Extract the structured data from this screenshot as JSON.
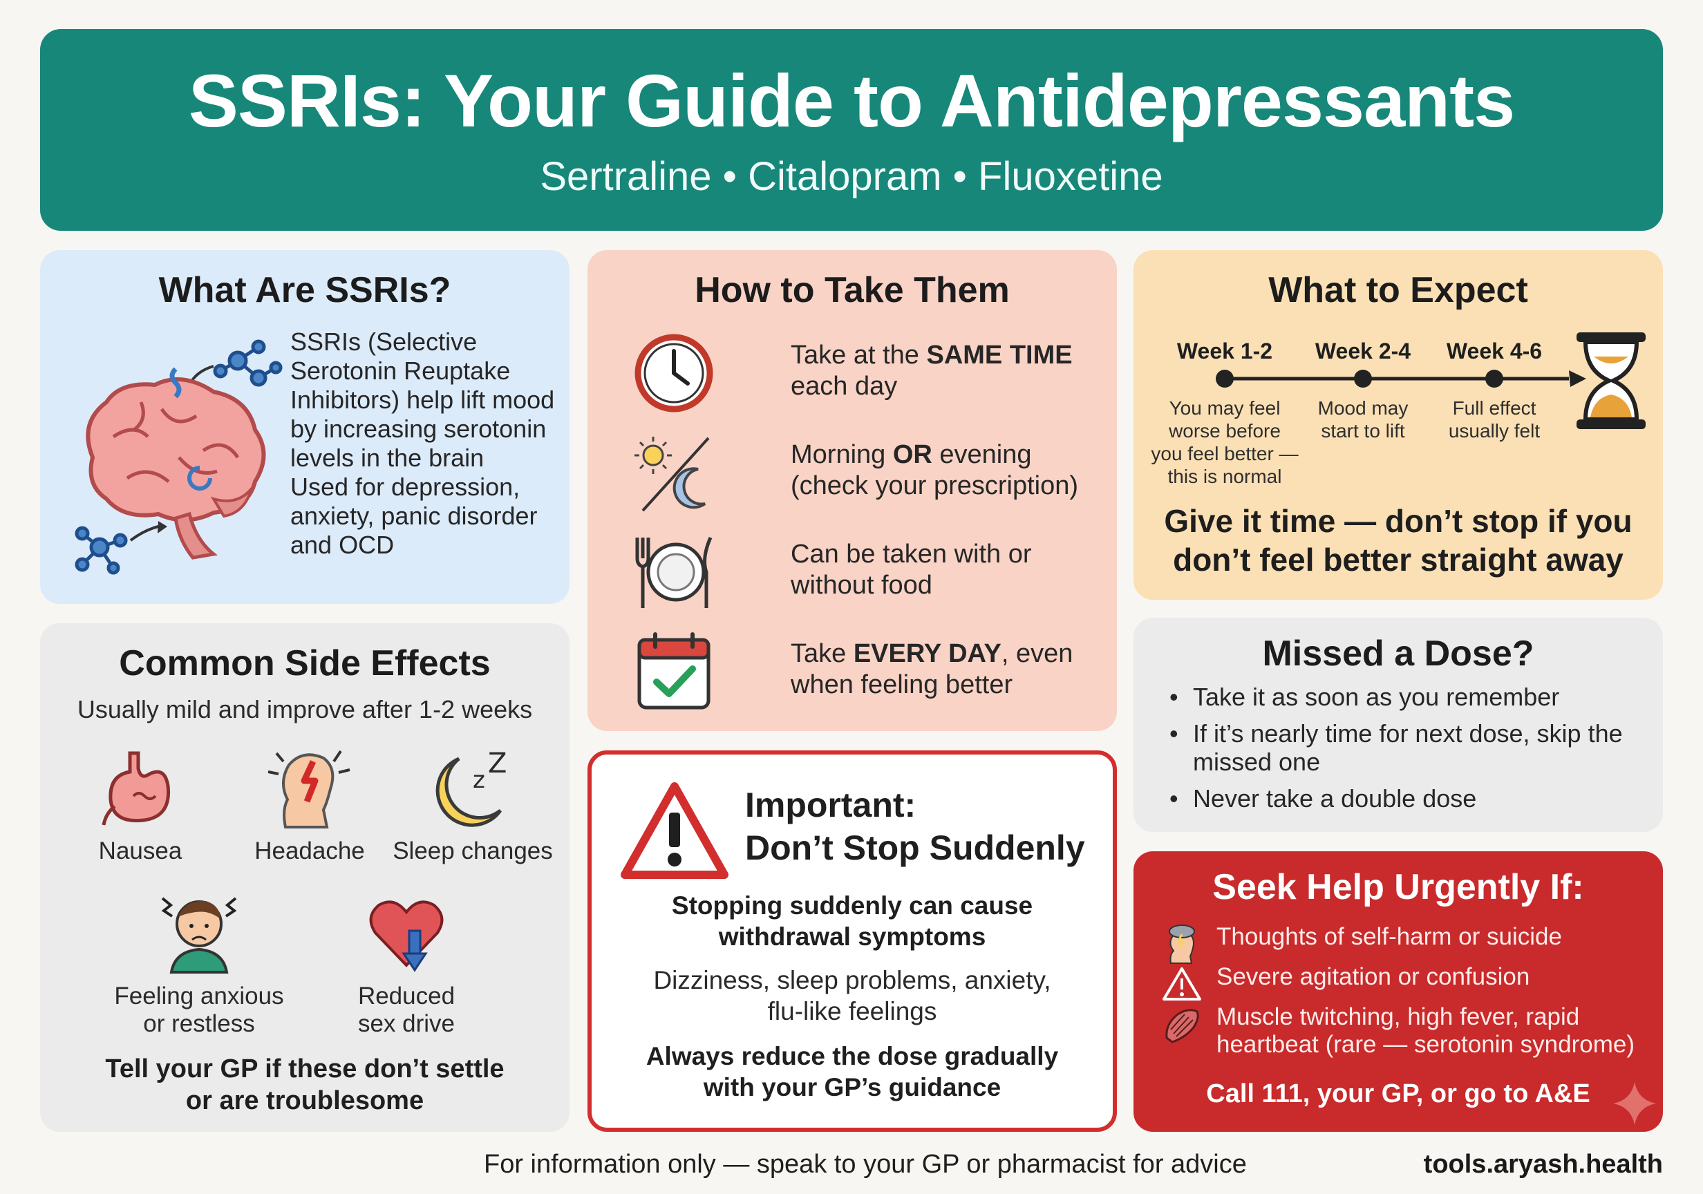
{
  "header": {
    "title": "SSRIs: Your Guide to Antidepressants",
    "subtitle": "Sertraline • Citalopram • Fluoxetine"
  },
  "what": {
    "title": "What Are SSRIs?",
    "text1": "SSRIs (Selective Serotonin Reuptake Inhibitors) help lift mood by increasing serotonin levels in the brain",
    "text2": "Used for depression, anxiety, panic disorder and OCD",
    "icons": [
      "brain-icon",
      "molecule-icon"
    ]
  },
  "side_effects": {
    "title": "Common Side Effects",
    "note": "Usually mild and improve after 1-2 weeks",
    "items": [
      {
        "label": "Nausea",
        "icon": "stomach-icon"
      },
      {
        "label": "Headache",
        "icon": "headache-icon"
      },
      {
        "label": "Sleep changes",
        "icon": "moon-icon"
      },
      {
        "label_line1": "Feeling anxious",
        "label_line2": "or restless",
        "icon": "anxious-person-icon"
      },
      {
        "label_line1": "Reduced",
        "label_line2": "sex drive",
        "icon": "heart-down-icon"
      }
    ],
    "bottom_line1": "Tell your GP if these don’t settle",
    "bottom_line2": "or are troublesome"
  },
  "how": {
    "title": "How to Take Them",
    "items": [
      {
        "pre": "Take at the ",
        "bold": "SAME TIME",
        "post": " each day",
        "icon": "clock-icon"
      },
      {
        "pre": "Morning ",
        "bold": "OR",
        "post": " evening (check your prescription)",
        "icon": "sun-moon-icon"
      },
      {
        "pre": "Can be taken with or without food",
        "bold": "",
        "post": "",
        "icon": "plate-icon"
      },
      {
        "pre": "Take ",
        "bold": "EVERY DAY",
        "post": ", even when feeling better",
        "icon": "calendar-check-icon"
      }
    ]
  },
  "important": {
    "title_line1": "Important:",
    "title_line2": "Don’t Stop Suddenly",
    "p1_line1": "Stopping suddenly can cause",
    "p1_line2": "withdrawal symptoms",
    "p2_line1": "Dizziness, sleep problems, anxiety,",
    "p2_line2": "flu-like feelings",
    "p3_line1": "Always reduce the dose gradually",
    "p3_line2": "with your GP’s guidance"
  },
  "expect": {
    "title": "What to Expect",
    "weeks": [
      {
        "label": "Week 1-2",
        "desc": [
          "You may feel",
          "worse before",
          "you feel better —",
          "this is normal"
        ]
      },
      {
        "label": "Week 2-4",
        "desc": [
          "Mood may",
          "start to lift"
        ]
      },
      {
        "label": "Week 4-6",
        "desc": [
          "Full effect",
          "usually felt"
        ]
      }
    ],
    "big_line1": "Give it time — don’t stop if you",
    "big_line2": "don’t feel better straight away"
  },
  "missed": {
    "title": "Missed a Dose?",
    "items": [
      "Take it as soon as you remember",
      "If it’s nearly time for next dose, skip the missed one",
      "Never take a double dose"
    ]
  },
  "help": {
    "title": "Seek Help Urgently If:",
    "items": [
      {
        "text": "Thoughts of self-harm or suicide",
        "icon": "storm-head-icon"
      },
      {
        "text": "Severe agitation or confusion",
        "icon": "warning-icon"
      },
      {
        "text": "Muscle twitching, high fever, rapid heartbeat (rare — serotonin syndrome)",
        "icon": "muscle-icon"
      }
    ],
    "call": "Call 111, your GP, or go to A&E"
  },
  "footer": {
    "disclaimer": "For information only — speak to your GP or pharmacist for advice",
    "site": "tools.aryash.health"
  },
  "colors": {
    "header_teal": "#17877a",
    "what_blue": "#dcebfa",
    "how_salmon": "#f9d3c5",
    "expect_peach": "#fbe0b5",
    "grey_panel": "#ebebeb",
    "alert_red": "#c92a2b"
  }
}
